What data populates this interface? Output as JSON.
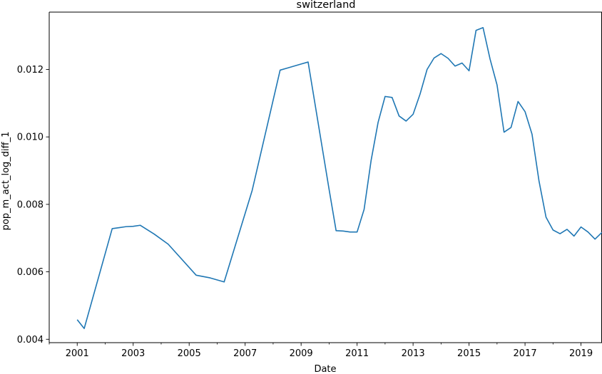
{
  "chart_data": {
    "type": "line",
    "title": "switzerland",
    "xlabel": "Date",
    "ylabel": "pop_m_act_log_diff_1",
    "xlim": [
      2000.0,
      2019.75
    ],
    "ylim": [
      0.0039,
      0.0137
    ],
    "grid": false,
    "legend": false,
    "x_major_ticks": [
      2001,
      2003,
      2005,
      2007,
      2009,
      2011,
      2013,
      2015,
      2017,
      2019
    ],
    "x_minor_ticks": [
      2000,
      2002,
      2004,
      2006,
      2008,
      2010,
      2012,
      2014,
      2016,
      2018
    ],
    "x_tick_labels": [
      "2001",
      "2003",
      "2005",
      "2007",
      "2009",
      "2011",
      "2013",
      "2015",
      "2017",
      "2019"
    ],
    "y_ticks": [
      0.004,
      0.006,
      0.008,
      0.01,
      0.012
    ],
    "y_tick_labels": [
      "0.004",
      "0.006",
      "0.008",
      "0.010",
      "0.012"
    ],
    "series": [
      {
        "color": "#1f77b4",
        "x": [
          2001.0,
          2001.25,
          2002.25,
          2002.5,
          2002.75,
          2003.0,
          2003.25,
          2003.75,
          2004.25,
          2005.25,
          2005.75,
          2006.25,
          2007.25,
          2008.25,
          2008.5,
          2008.75,
          2009.0,
          2009.25,
          2010.0,
          2010.25,
          2010.5,
          2010.75,
          2011.0,
          2011.25,
          2011.5,
          2011.75,
          2012.0,
          2012.25,
          2012.5,
          2012.75,
          2013.0,
          2013.25,
          2013.5,
          2013.75,
          2014.0,
          2014.25,
          2014.5,
          2014.75,
          2015.0,
          2015.25,
          2015.5,
          2015.75,
          2016.0,
          2016.25,
          2016.5,
          2016.75,
          2017.0,
          2017.25,
          2017.5,
          2017.75,
          2018.0,
          2018.25,
          2018.5,
          2018.75,
          2019.0,
          2019.25,
          2019.5,
          2019.75
        ],
        "values": [
          0.00458,
          0.00432,
          0.00728,
          0.00731,
          0.00734,
          0.00735,
          0.00738,
          0.00712,
          0.00682,
          0.0059,
          0.00582,
          0.0057,
          0.00841,
          0.01198,
          0.01204,
          0.0121,
          0.01216,
          0.01222,
          0.00844,
          0.00722,
          0.00721,
          0.00718,
          0.00718,
          0.00785,
          0.0093,
          0.01043,
          0.0112,
          0.01117,
          0.01062,
          0.01047,
          0.01067,
          0.01127,
          0.012,
          0.01234,
          0.01247,
          0.01233,
          0.0121,
          0.01219,
          0.01196,
          0.01316,
          0.01324,
          0.01231,
          0.01154,
          0.01014,
          0.01028,
          0.01105,
          0.01075,
          0.01008,
          0.00869,
          0.00762,
          0.00724,
          0.00713,
          0.00726,
          0.00706,
          0.00733,
          0.00718,
          0.00697,
          0.00717
        ]
      }
    ]
  }
}
